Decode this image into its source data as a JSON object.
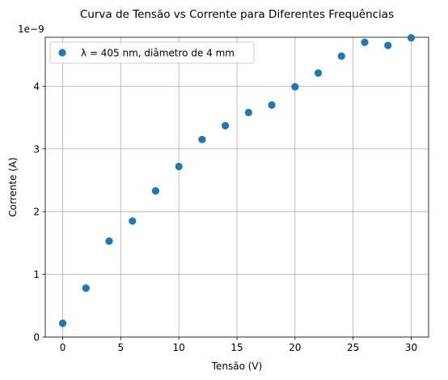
{
  "chart_data": {
    "type": "scatter",
    "title": "Curva de Tensão vs Corrente para Diferentes Frequências",
    "xlabel": "Tensão (V)",
    "ylabel": "Corrente (A)",
    "y_scale_label": "1e−9",
    "xlim": [
      -1.5,
      31.5
    ],
    "ylim": [
      0,
      4.78
    ],
    "x_ticks": [
      0,
      5,
      10,
      15,
      20,
      25,
      30
    ],
    "y_ticks": [
      0,
      1,
      2,
      3,
      4
    ],
    "grid": true,
    "legend_position": "upper-left",
    "colors": {
      "series": "#1f77b4",
      "grid": "#b0b0b0"
    },
    "series": [
      {
        "name": "λ = 405 nm, diâmetro de 4 mm",
        "x": [
          0,
          2,
          4,
          6,
          8,
          10,
          12,
          14,
          16,
          18,
          20,
          22,
          24,
          26,
          28,
          30
        ],
        "y": [
          0.22,
          0.78,
          1.53,
          1.85,
          2.33,
          2.72,
          3.15,
          3.37,
          3.58,
          3.7,
          3.99,
          4.21,
          4.48,
          4.7,
          4.65,
          4.77
        ]
      }
    ]
  }
}
